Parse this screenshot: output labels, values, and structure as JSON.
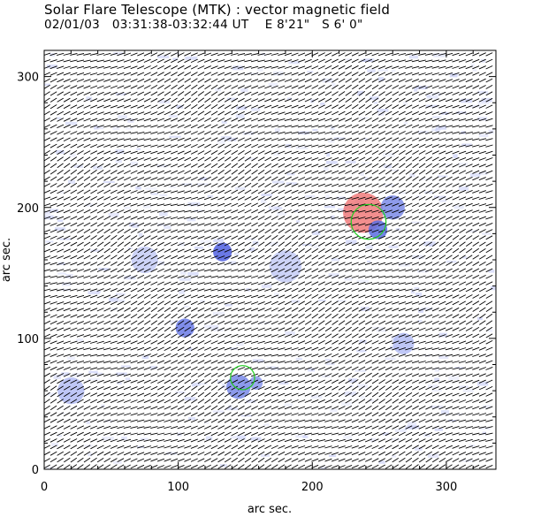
{
  "chart_data": {
    "type": "vector field",
    "title": "Solar Flare Telescope (MTK) : vector magnetic field",
    "subtitle": {
      "date": "02/01/03",
      "time_range": "03:31:38-03:32:44 UT",
      "position": "E 8'21\"   S 6' 0\""
    },
    "xlabel": "arc sec.",
    "ylabel": "arc sec.",
    "xlim": [
      0,
      337
    ],
    "ylim": [
      0,
      320
    ],
    "xticks": [
      0,
      100,
      200,
      300
    ],
    "yticks": [
      0,
      100,
      200,
      300
    ],
    "x_minor_step": 20,
    "y_minor_step": 20,
    "vector_grid_spacing": 5,
    "vector_color": "#000000",
    "background_patches": [
      {
        "x": 238,
        "y": 196,
        "r": 15,
        "polarity": "positive",
        "color": "#f07a7a"
      },
      {
        "x": 249,
        "y": 183,
        "r": 7,
        "polarity": "negative",
        "color": "#5a6fe0"
      },
      {
        "x": 260,
        "y": 200,
        "r": 9,
        "polarity": "negative",
        "color": "#7a8ae8"
      },
      {
        "x": 133,
        "y": 166,
        "r": 7,
        "polarity": "negative",
        "color": "#5060e0"
      },
      {
        "x": 105,
        "y": 108,
        "r": 7,
        "polarity": "negative",
        "color": "#6a7ae6"
      },
      {
        "x": 145,
        "y": 63,
        "r": 9,
        "polarity": "negative",
        "color": "#7888e8"
      },
      {
        "x": 158,
        "y": 66,
        "r": 5,
        "polarity": "negative",
        "color": "#8896ec"
      },
      {
        "x": 268,
        "y": 96,
        "r": 8,
        "polarity": "negative",
        "color": "#b4bdf4"
      },
      {
        "x": 20,
        "y": 60,
        "r": 10,
        "polarity": "negative",
        "color": "#b4bdf4"
      },
      {
        "x": 75,
        "y": 160,
        "r": 10,
        "polarity": "negative",
        "color": "#c4cbf6"
      },
      {
        "x": 180,
        "y": 155,
        "r": 12,
        "polarity": "negative",
        "color": "#c4cbf6"
      }
    ],
    "contours": [
      {
        "x": 242,
        "y": 189,
        "r": 13,
        "color": "#22cc22"
      },
      {
        "x": 148,
        "y": 70,
        "r": 9,
        "color": "#22cc22"
      }
    ]
  }
}
